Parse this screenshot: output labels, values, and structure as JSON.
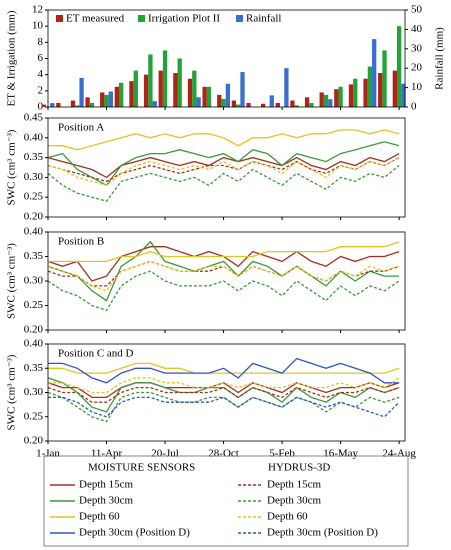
{
  "chart_data": [
    {
      "type": "bar",
      "ylabel": "ET & Irrigation (mm)",
      "y2label": "Rainfall (mm)",
      "x": [
        0,
        25,
        50,
        75,
        100,
        125,
        150,
        175,
        200,
        225,
        250,
        275,
        300,
        325,
        350,
        375,
        400,
        425,
        450,
        475,
        500,
        525,
        550,
        575,
        600
      ],
      "xlim": [
        0,
        610
      ],
      "xticks": [
        0,
        100,
        200,
        300,
        400,
        500,
        600
      ],
      "ylim": [
        0,
        12
      ],
      "yticks": [
        0,
        2,
        4,
        6,
        8,
        10,
        12
      ],
      "y2lim": [
        0,
        50
      ],
      "y2ticks": [
        0,
        10,
        20,
        30,
        40,
        50
      ],
      "series": [
        {
          "name": "ET measured",
          "color": "#b02418",
          "values": [
            0.3,
            0.5,
            0.8,
            1.2,
            1.8,
            2.5,
            3.2,
            4.0,
            4.5,
            4.2,
            3.5,
            2.5,
            1.5,
            0.8,
            0.5,
            0.4,
            0.5,
            0.8,
            1.2,
            1.8,
            2.2,
            2.8,
            3.5,
            4.2,
            4.5
          ]
        },
        {
          "name": "Irrigation Plot II",
          "color": "#22a33a",
          "values": [
            0,
            0,
            0.2,
            0.5,
            1.5,
            3.0,
            4.5,
            6.5,
            7.0,
            6.0,
            4.5,
            2.5,
            1.0,
            0.3,
            0,
            0,
            0,
            0.2,
            0.5,
            1.5,
            2.5,
            3.5,
            5.0,
            7.0,
            10.0
          ]
        },
        {
          "name": "Rainfall",
          "color": "#3a6fd0",
          "axis": "y2",
          "values": [
            2,
            0,
            15,
            0,
            8,
            0,
            0,
            3,
            0,
            0,
            5,
            0,
            12,
            18,
            0,
            6,
            20,
            0,
            0,
            4,
            0,
            0,
            35,
            0,
            12
          ]
        }
      ]
    },
    {
      "type": "line",
      "annotation": "Position A",
      "ylabel": "SWC (cm³ cm⁻³)",
      "x": [
        0,
        25,
        50,
        75,
        100,
        125,
        150,
        175,
        200,
        225,
        250,
        275,
        300,
        325,
        350,
        375,
        400,
        425,
        450,
        475,
        500,
        525,
        550,
        575,
        600
      ],
      "xlim": [
        0,
        610
      ],
      "xticks": [
        0,
        100,
        200,
        300,
        400,
        500,
        600
      ],
      "ylim": [
        0.2,
        0.45
      ],
      "yticks": [
        {
          "value": 0.2,
          "label": "0.20"
        },
        {
          "value": 0.25,
          "label": "0.25"
        },
        {
          "value": 0.3,
          "label": "0.30"
        },
        {
          "value": 0.35,
          "label": "0.35"
        },
        {
          "value": 0.4,
          "label": "0.40"
        },
        {
          "value": 0.45,
          "label": "0.45"
        }
      ],
      "series": [
        {
          "name": "Depth 15cm",
          "color": "#a3301c",
          "dashed": false,
          "values": [
            0.35,
            0.34,
            0.33,
            0.32,
            0.3,
            0.33,
            0.34,
            0.35,
            0.34,
            0.33,
            0.34,
            0.33,
            0.35,
            0.34,
            0.35,
            0.34,
            0.33,
            0.35,
            0.33,
            0.32,
            0.34,
            0.33,
            0.35,
            0.34,
            0.36
          ]
        },
        {
          "name": "Depth 30cm",
          "color": "#3a9a3a",
          "dashed": false,
          "values": [
            0.35,
            0.36,
            0.32,
            0.3,
            0.28,
            0.33,
            0.35,
            0.36,
            0.36,
            0.37,
            0.36,
            0.35,
            0.36,
            0.34,
            0.37,
            0.36,
            0.33,
            0.36,
            0.35,
            0.34,
            0.36,
            0.37,
            0.38,
            0.39,
            0.38
          ]
        },
        {
          "name": "Depth 60",
          "color": "#e2c420",
          "dashed": false,
          "values": [
            0.38,
            0.38,
            0.37,
            0.38,
            0.39,
            0.4,
            0.41,
            0.4,
            0.41,
            0.4,
            0.41,
            0.41,
            0.4,
            0.38,
            0.4,
            0.4,
            0.41,
            0.4,
            0.41,
            0.41,
            0.42,
            0.42,
            0.41,
            0.42,
            0.41
          ]
        },
        {
          "name": "Depth 15cm",
          "color": "#a3301c",
          "dashed": true,
          "values": [
            0.33,
            0.32,
            0.31,
            0.3,
            0.29,
            0.31,
            0.32,
            0.33,
            0.32,
            0.31,
            0.32,
            0.33,
            0.33,
            0.32,
            0.34,
            0.33,
            0.32,
            0.34,
            0.32,
            0.31,
            0.33,
            0.32,
            0.34,
            0.33,
            0.35
          ]
        },
        {
          "name": "Depth 30cm",
          "color": "#3a9a3a",
          "dashed": true,
          "values": [
            0.31,
            0.28,
            0.26,
            0.25,
            0.24,
            0.29,
            0.3,
            0.31,
            0.3,
            0.29,
            0.3,
            0.28,
            0.31,
            0.29,
            0.32,
            0.3,
            0.28,
            0.31,
            0.29,
            0.27,
            0.3,
            0.29,
            0.31,
            0.3,
            0.33
          ]
        },
        {
          "name": "Depth 60",
          "color": "#e2c420",
          "dashed": true,
          "values": [
            0.33,
            0.32,
            0.3,
            0.29,
            0.28,
            0.31,
            0.33,
            0.34,
            0.33,
            0.32,
            0.33,
            0.32,
            0.34,
            0.32,
            0.34,
            0.33,
            0.31,
            0.34,
            0.32,
            0.3,
            0.33,
            0.32,
            0.34,
            0.33,
            0.35
          ]
        }
      ]
    },
    {
      "type": "line",
      "annotation": "Position B",
      "ylabel": "SWC (cm³ cm⁻³)",
      "x": [
        0,
        25,
        50,
        75,
        100,
        125,
        150,
        175,
        200,
        225,
        250,
        275,
        300,
        325,
        350,
        375,
        400,
        425,
        450,
        475,
        500,
        525,
        550,
        575,
        600
      ],
      "xlim": [
        0,
        610
      ],
      "xticks": [
        0,
        100,
        200,
        300,
        400,
        500,
        600
      ],
      "ylim": [
        0.2,
        0.4
      ],
      "yticks": [
        {
          "value": 0.2,
          "label": "0.20"
        },
        {
          "value": 0.25,
          "label": "0.25"
        },
        {
          "value": 0.3,
          "label": "0.30"
        },
        {
          "value": 0.35,
          "label": "0.35"
        },
        {
          "value": 0.4,
          "label": "0.40"
        }
      ],
      "series": [
        {
          "name": "Depth 15cm",
          "color": "#a3301c",
          "dashed": false,
          "values": [
            0.34,
            0.33,
            0.34,
            0.3,
            0.31,
            0.35,
            0.36,
            0.37,
            0.37,
            0.36,
            0.35,
            0.36,
            0.35,
            0.33,
            0.36,
            0.35,
            0.34,
            0.36,
            0.34,
            0.33,
            0.35,
            0.34,
            0.35,
            0.35,
            0.36
          ]
        },
        {
          "name": "Depth 30cm",
          "color": "#3a9a3a",
          "dashed": false,
          "values": [
            0.33,
            0.32,
            0.31,
            0.28,
            0.26,
            0.33,
            0.35,
            0.38,
            0.34,
            0.33,
            0.32,
            0.33,
            0.34,
            0.31,
            0.34,
            0.33,
            0.31,
            0.33,
            0.31,
            0.29,
            0.32,
            0.3,
            0.32,
            0.31,
            0.31
          ]
        },
        {
          "name": "Depth 60",
          "color": "#e2c420",
          "dashed": false,
          "values": [
            0.34,
            0.34,
            0.34,
            0.34,
            0.34,
            0.35,
            0.35,
            0.36,
            0.35,
            0.35,
            0.35,
            0.35,
            0.35,
            0.35,
            0.35,
            0.36,
            0.36,
            0.36,
            0.36,
            0.36,
            0.37,
            0.37,
            0.37,
            0.37,
            0.38
          ]
        },
        {
          "name": "Depth 15cm",
          "color": "#a3301c",
          "dashed": true,
          "values": [
            0.32,
            0.31,
            0.31,
            0.29,
            0.29,
            0.32,
            0.33,
            0.34,
            0.33,
            0.32,
            0.32,
            0.32,
            0.33,
            0.31,
            0.33,
            0.32,
            0.31,
            0.33,
            0.31,
            0.3,
            0.32,
            0.31,
            0.32,
            0.32,
            0.33
          ]
        },
        {
          "name": "Depth 30cm",
          "color": "#3a9a3a",
          "dashed": true,
          "values": [
            0.3,
            0.28,
            0.27,
            0.25,
            0.24,
            0.29,
            0.31,
            0.32,
            0.3,
            0.29,
            0.29,
            0.29,
            0.3,
            0.28,
            0.3,
            0.29,
            0.27,
            0.3,
            0.28,
            0.26,
            0.29,
            0.27,
            0.29,
            0.28,
            0.3
          ]
        },
        {
          "name": "Depth 60",
          "color": "#e2c420",
          "dashed": true,
          "values": [
            0.33,
            0.32,
            0.31,
            0.29,
            0.28,
            0.32,
            0.33,
            0.34,
            0.33,
            0.32,
            0.32,
            0.33,
            0.33,
            0.31,
            0.33,
            0.32,
            0.31,
            0.33,
            0.31,
            0.3,
            0.32,
            0.31,
            0.33,
            0.32,
            0.33
          ]
        }
      ]
    },
    {
      "type": "line",
      "annotation": "Position C and D",
      "ylabel": "SWC (cm³ cm⁻³)",
      "x": [
        0,
        25,
        50,
        75,
        100,
        125,
        150,
        175,
        200,
        225,
        250,
        275,
        300,
        325,
        350,
        375,
        400,
        425,
        450,
        475,
        500,
        525,
        550,
        575,
        600
      ],
      "xlim": [
        0,
        610
      ],
      "xticks": [
        {
          "value": 0,
          "label": "1-Jan"
        },
        {
          "value": 100,
          "label": "11-Apr"
        },
        {
          "value": 200,
          "label": "20-Jul"
        },
        {
          "value": 300,
          "label": "28-Oct"
        },
        {
          "value": 400,
          "label": "5-Feb"
        },
        {
          "value": 500,
          "label": "16-May"
        },
        {
          "value": 600,
          "label": "24-Aug"
        }
      ],
      "ylim": [
        0.2,
        0.4
      ],
      "yticks": [
        {
          "value": 0.2,
          "label": "0.20"
        },
        {
          "value": 0.25,
          "label": "0.25"
        },
        {
          "value": 0.3,
          "label": "0.30"
        },
        {
          "value": 0.35,
          "label": "0.35"
        },
        {
          "value": 0.4,
          "label": "0.40"
        }
      ],
      "legend_groups": [
        "MOISTURE SENSORS",
        "HYDRUS-3D"
      ],
      "series": [
        {
          "name": "Depth 15cm",
          "color": "#a3301c",
          "dashed": false,
          "values": [
            0.32,
            0.31,
            0.31,
            0.29,
            0.29,
            0.31,
            0.32,
            0.32,
            0.31,
            0.31,
            0.31,
            0.31,
            0.32,
            0.3,
            0.32,
            0.31,
            0.3,
            0.32,
            0.31,
            0.3,
            0.31,
            0.31,
            0.32,
            0.31,
            0.32
          ]
        },
        {
          "name": "Depth 30cm",
          "color": "#3a9a3a",
          "dashed": false,
          "values": [
            0.33,
            0.32,
            0.3,
            0.27,
            0.26,
            0.31,
            0.32,
            0.32,
            0.31,
            0.3,
            0.3,
            0.31,
            0.31,
            0.29,
            0.31,
            0.3,
            0.28,
            0.31,
            0.29,
            0.28,
            0.3,
            0.29,
            0.31,
            0.3,
            0.31
          ]
        },
        {
          "name": "Depth 60",
          "color": "#e2c420",
          "dashed": false,
          "values": [
            0.35,
            0.35,
            0.34,
            0.34,
            0.34,
            0.35,
            0.36,
            0.36,
            0.35,
            0.35,
            0.34,
            0.34,
            0.34,
            0.34,
            0.34,
            0.34,
            0.34,
            0.34,
            0.34,
            0.34,
            0.34,
            0.34,
            0.34,
            0.34,
            0.35
          ]
        },
        {
          "name": "Depth 30cm (Position D)",
          "color": "#2d55c8",
          "dashed": false,
          "values": [
            0.36,
            0.36,
            0.35,
            0.33,
            0.32,
            0.34,
            0.35,
            0.35,
            0.34,
            0.34,
            0.34,
            0.34,
            0.35,
            0.33,
            0.36,
            0.35,
            0.34,
            0.37,
            0.36,
            0.35,
            0.36,
            0.35,
            0.34,
            0.32,
            0.32
          ]
        },
        {
          "name": "Depth 15cm",
          "color": "#a3301c",
          "dashed": true,
          "values": [
            0.31,
            0.3,
            0.3,
            0.28,
            0.28,
            0.3,
            0.31,
            0.31,
            0.3,
            0.3,
            0.3,
            0.3,
            0.31,
            0.29,
            0.31,
            0.3,
            0.29,
            0.31,
            0.3,
            0.29,
            0.3,
            0.3,
            0.31,
            0.3,
            0.31
          ]
        },
        {
          "name": "Depth 30cm",
          "color": "#3a9a3a",
          "dashed": true,
          "values": [
            0.3,
            0.29,
            0.27,
            0.25,
            0.24,
            0.29,
            0.3,
            0.3,
            0.29,
            0.28,
            0.28,
            0.29,
            0.29,
            0.27,
            0.29,
            0.28,
            0.27,
            0.29,
            0.28,
            0.26,
            0.28,
            0.27,
            0.29,
            0.28,
            0.29
          ]
        },
        {
          "name": "Depth 60",
          "color": "#e2c420",
          "dashed": true,
          "values": [
            0.32,
            0.32,
            0.31,
            0.3,
            0.3,
            0.32,
            0.33,
            0.33,
            0.32,
            0.32,
            0.31,
            0.31,
            0.32,
            0.31,
            0.32,
            0.31,
            0.31,
            0.32,
            0.31,
            0.31,
            0.32,
            0.31,
            0.32,
            0.31,
            0.33
          ]
        },
        {
          "name": "Depth 30cm (Position D)",
          "color": "#2d55c8",
          "dashed": true,
          "values": [
            0.29,
            0.29,
            0.28,
            0.26,
            0.25,
            0.28,
            0.29,
            0.29,
            0.28,
            0.28,
            0.28,
            0.28,
            0.29,
            0.27,
            0.29,
            0.28,
            0.27,
            0.29,
            0.28,
            0.27,
            0.28,
            0.27,
            0.26,
            0.25,
            0.28
          ]
        }
      ]
    }
  ]
}
